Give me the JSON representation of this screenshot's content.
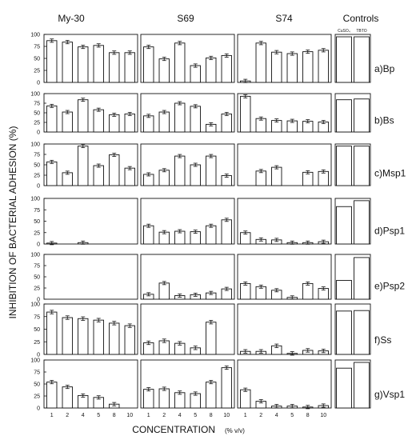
{
  "chart_data": {
    "type": "bar",
    "ylabel": "INHIBITION OF BACTERIAL ADHESION (%)",
    "xlabel": "CONCENTRATION",
    "xlabel_unit": "(% v/v)",
    "ylim": [
      0,
      100
    ],
    "yticks": [
      0,
      25,
      50,
      75,
      100
    ],
    "categories": [
      "1",
      "2",
      "4",
      "5",
      "8",
      "10"
    ],
    "columns": [
      "My-30",
      "S69",
      "S74",
      "Controls"
    ],
    "control_labels": [
      "CuSO₄",
      "TBTO"
    ],
    "rows": [
      {
        "label": "a)Bp",
        "values": {
          "My-30": [
            87,
            84,
            74,
            77,
            62,
            62
          ],
          "S69": [
            74,
            49,
            82,
            35,
            51,
            56
          ],
          "S74": [
            3,
            82,
            63,
            60,
            64,
            67
          ]
        },
        "controls": [
          95,
          95
        ]
      },
      {
        "label": "b)Bs",
        "values": {
          "My-30": [
            68,
            52,
            84,
            58,
            45,
            47
          ],
          "S69": [
            42,
            52,
            75,
            67,
            20,
            47
          ],
          "S74": [
            93,
            35,
            30,
            29,
            28,
            26
          ]
        },
        "controls": [
          84,
          86
        ]
      },
      {
        "label": "c)Msp1",
        "values": {
          "My-30": [
            57,
            31,
            95,
            48,
            74,
            42
          ],
          "S69": [
            27,
            37,
            71,
            50,
            71,
            24
          ],
          "S74": [
            0,
            35,
            44,
            0,
            32,
            34
          ]
        },
        "controls": [
          95,
          95
        ]
      },
      {
        "label": "d)Psp1",
        "values": {
          "My-30": [
            2,
            0,
            3,
            0,
            0,
            0
          ],
          "S69": [
            40,
            26,
            28,
            27,
            40,
            53
          ],
          "S74": [
            25,
            10,
            9,
            3,
            3,
            5
          ]
        },
        "controls": [
          82,
          95
        ]
      },
      {
        "label": "e)Psp2",
        "values": {
          "My-30": [
            0,
            0,
            0,
            0,
            0,
            0
          ],
          "S69": [
            11,
            36,
            8,
            10,
            14,
            23
          ],
          "S74": [
            35,
            28,
            20,
            4,
            35,
            24
          ]
        },
        "controls": [
          42,
          93
        ]
      },
      {
        "label": "f)Ss",
        "values": {
          "My-30": [
            84,
            73,
            71,
            68,
            62,
            57
          ],
          "S69": [
            23,
            27,
            22,
            13,
            64,
            0
          ],
          "S74": [
            6,
            6,
            17,
            2,
            8,
            7
          ]
        },
        "controls": [
          86,
          87
        ]
      },
      {
        "label": "g)Vsp1",
        "values": {
          "My-30": [
            54,
            44,
            26,
            22,
            8,
            0
          ],
          "S69": [
            39,
            40,
            32,
            30,
            54,
            84
          ],
          "S74": [
            38,
            14,
            4,
            4,
            2,
            5
          ]
        },
        "controls": [
          83,
          95
        ]
      }
    ]
  }
}
